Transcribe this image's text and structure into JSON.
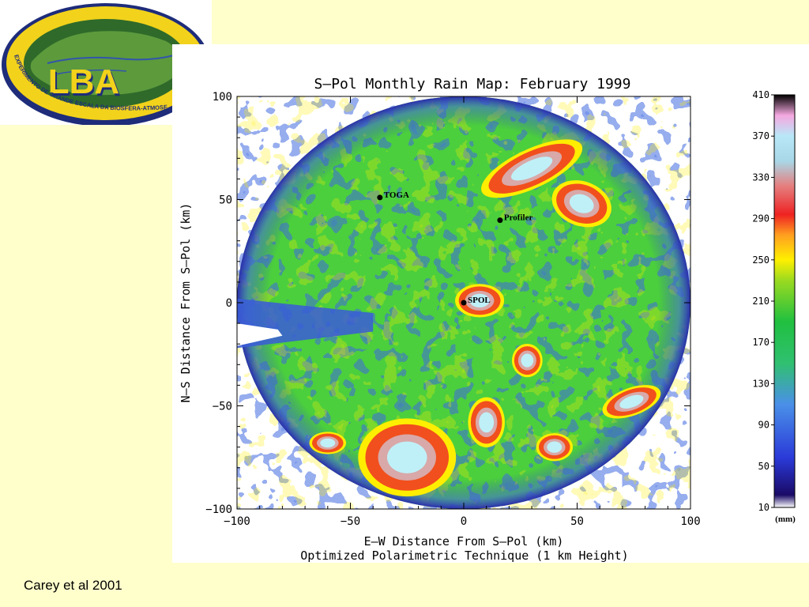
{
  "logo": {
    "name": "LBA",
    "ring_text": "EXPERIMENTO DE GRANDE ESCALA DA BIOSFERA-ATMOSFERA NA"
  },
  "citation": "Carey et al 2001",
  "chart_data": {
    "type": "heatmap",
    "title": "S–Pol Monthly Rain Map: February 1999",
    "subtitle": "Optimized Polarimetric Technique (1 km Height)",
    "xlabel": "E–W Distance From S–Pol (km)",
    "ylabel": "N–S Distance From S–Pol (km)",
    "xlim": [
      -100,
      100
    ],
    "ylim": [
      -100,
      100
    ],
    "xticks": [
      -100,
      -50,
      0,
      50,
      100
    ],
    "yticks": [
      -100,
      -50,
      0,
      50,
      100
    ],
    "radar_range_km": 100,
    "colorbar": {
      "unit": "(mm)",
      "min": 10,
      "max": 410,
      "ticks": [
        10,
        50,
        90,
        130,
        170,
        210,
        250,
        290,
        330,
        370,
        410
      ]
    },
    "stations": [
      {
        "name": "TOGA",
        "x": -37,
        "y": 51
      },
      {
        "name": "Profiler",
        "x": 16,
        "y": 40
      },
      {
        "name": "SPOL",
        "x": 0,
        "y": 0
      }
    ],
    "colors": {
      "bg": "#FFFFCC",
      "low": "#3340C8",
      "mid": "#22CC33",
      "yellow": "#FFEE00",
      "red": "#EE3322",
      "high": "#BFF0F8"
    }
  }
}
